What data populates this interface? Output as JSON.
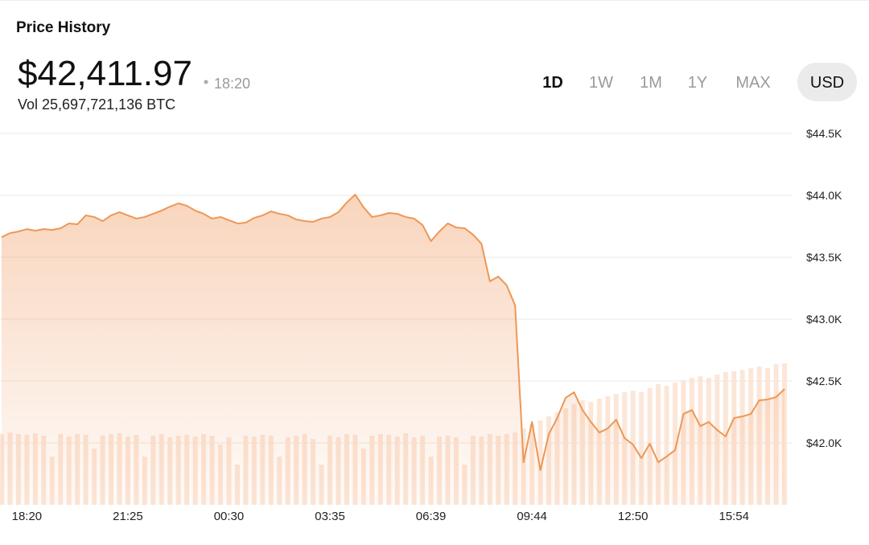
{
  "header": {
    "title": "Price History",
    "price": "$42,411.97",
    "time": "18:20",
    "volume": "Vol 25,697,721,136 BTC"
  },
  "controls": {
    "ranges": [
      "1D",
      "1W",
      "1M",
      "1Y",
      "MAX"
    ],
    "active_range": 0,
    "currency": "USD"
  },
  "chart_data": {
    "type": "area",
    "categories": [
      null,
      null,
      null,
      "18:20",
      null,
      null,
      null,
      null,
      null,
      null,
      null,
      null,
      null,
      null,
      null,
      "21:25",
      null,
      null,
      null,
      null,
      null,
      null,
      null,
      null,
      null,
      null,
      null,
      "00:30",
      null,
      null,
      null,
      null,
      null,
      null,
      null,
      null,
      null,
      null,
      null,
      "03:35",
      null,
      null,
      null,
      null,
      null,
      null,
      null,
      null,
      null,
      null,
      null,
      "06:39",
      null,
      null,
      null,
      null,
      null,
      null,
      null,
      null,
      null,
      null,
      null,
      "09:44",
      null,
      null,
      null,
      null,
      null,
      null,
      null,
      null,
      null,
      null,
      null,
      "12:50",
      null,
      null,
      null,
      null,
      null,
      null,
      null,
      null,
      null,
      null,
      null,
      "15:54",
      null,
      null,
      null,
      null,
      null,
      null
    ],
    "values": [
      43662,
      43695,
      43708,
      43727,
      43714,
      43727,
      43721,
      43734,
      43773,
      43766,
      43838,
      43825,
      43792,
      43838,
      43864,
      43838,
      43812,
      43825,
      43851,
      43877,
      43909,
      43935,
      43916,
      43877,
      43851,
      43812,
      43825,
      43799,
      43773,
      43779,
      43818,
      43838,
      43870,
      43851,
      43838,
      43805,
      43792,
      43786,
      43812,
      43825,
      43864,
      43942,
      44006,
      43903,
      43825,
      43838,
      43857,
      43851,
      43825,
      43812,
      43760,
      43630,
      43708,
      43773,
      43740,
      43734,
      43682,
      43610,
      43305,
      43344,
      43273,
      43110,
      41844,
      42169,
      41779,
      42071,
      42201,
      42364,
      42409,
      42266,
      42169,
      42084,
      42117,
      42188,
      42039,
      41987,
      41877,
      41994,
      41844,
      41890,
      41942,
      42234,
      42266,
      42136,
      42169,
      42104,
      42052,
      42201,
      42214,
      42234,
      42344,
      42351,
      42370,
      42435
    ],
    "volumes": [
      88,
      90,
      88,
      87,
      89,
      86,
      60,
      88,
      85,
      88,
      87,
      70,
      86,
      88,
      89,
      85,
      87,
      60,
      86,
      88,
      84,
      86,
      87,
      85,
      88,
      86,
      75,
      84,
      50,
      86,
      85,
      87,
      86,
      60,
      84,
      86,
      88,
      82,
      50,
      86,
      84,
      88,
      87,
      70,
      86,
      88,
      87,
      85,
      89,
      84,
      86,
      60,
      85,
      86,
      84,
      50,
      86,
      85,
      88,
      86,
      88,
      90,
      95,
      100,
      105,
      110,
      115,
      120,
      125,
      130,
      128,
      132,
      135,
      138,
      140,
      142,
      140,
      145,
      150,
      148,
      152,
      155,
      158,
      160,
      158,
      162,
      165,
      166,
      168,
      170,
      172,
      170,
      175,
      176
    ],
    "color": "#ee9755",
    "volume_color": "#fbe2d1",
    "ylim": [
      41500,
      44600
    ],
    "yticks": [
      {
        "value": 42000,
        "label": "$42.0K"
      },
      {
        "value": 42500,
        "label": "$42.5K"
      },
      {
        "value": 43000,
        "label": "$43.0K"
      },
      {
        "value": 43500,
        "label": "$43.5K"
      },
      {
        "value": 44000,
        "label": "$44.0K"
      },
      {
        "value": 44500,
        "label": "$44.5K"
      }
    ],
    "grid": true
  }
}
